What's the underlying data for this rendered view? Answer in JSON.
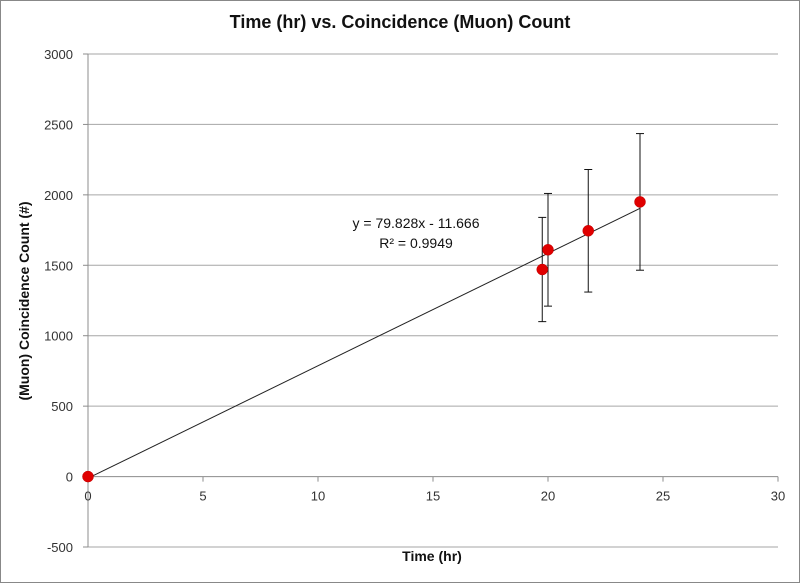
{
  "chart_data": {
    "type": "scatter",
    "title": "Time (hr) vs. Coincidence (Muon) Count",
    "xlabel": "Time (hr)",
    "ylabel": "(Muon) Coincidence Count (#)",
    "xlim": [
      0,
      30
    ],
    "ylim": [
      -500,
      3000
    ],
    "xticks": [
      0,
      5,
      10,
      15,
      20,
      25,
      30
    ],
    "yticks": [
      -500,
      0,
      500,
      1000,
      1500,
      2000,
      2500,
      3000
    ],
    "x_tick_labels": [
      "0",
      "5",
      "10",
      "15",
      "20",
      "25",
      "30"
    ],
    "y_tick_labels": [
      "-500",
      "0",
      "500",
      "1000",
      "1500",
      "2000",
      "2500",
      "3000"
    ],
    "grid": "horizontal",
    "legend": "none",
    "point_color": "#e00000",
    "points": [
      {
        "x": 0,
        "y": 0,
        "err_low": 0,
        "err_high": 0
      },
      {
        "x": 19.75,
        "y": 1470,
        "err_low": 1100,
        "err_high": 1840
      },
      {
        "x": 20,
        "y": 1610,
        "err_low": 1210,
        "err_high": 2010
      },
      {
        "x": 21.75,
        "y": 1745,
        "err_low": 1310,
        "err_high": 2180
      },
      {
        "x": 24,
        "y": 1950,
        "err_low": 1465,
        "err_high": 2435
      }
    ],
    "trendline": {
      "slope": 79.828,
      "intercept": -11.666,
      "x_range": [
        0,
        24
      ],
      "equation": "y = 79.828x - 11.666",
      "r_squared": "R² = 0.9949"
    }
  }
}
